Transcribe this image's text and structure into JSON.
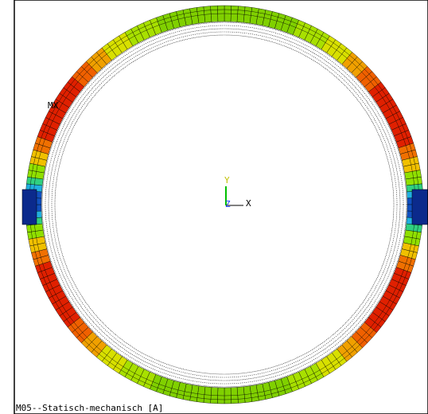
{
  "labels": {
    "max_marker": "MX",
    "axis_y": "Y",
    "axis_z": "Z",
    "axis_x": "X"
  },
  "footer": "M05--Statisch-mechanisch [A]"
}
